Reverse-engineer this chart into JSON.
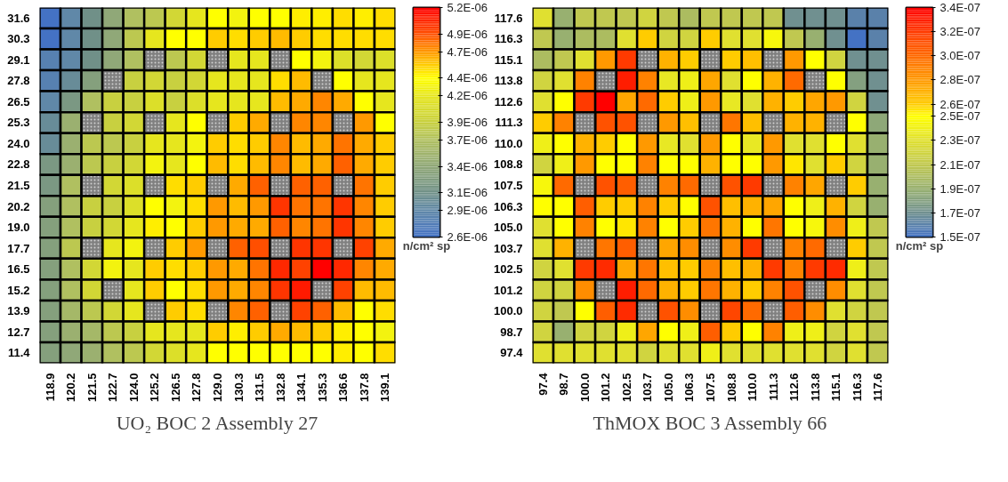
{
  "chart_data": [
    {
      "type": "heatmap",
      "title": "UO₂ BOC 2 Assembly 27",
      "clabel": "n/cm² sp",
      "categories": [
        "118.9",
        "120.2",
        "121.5",
        "122.7",
        "124.0",
        "125.2",
        "126.5",
        "127.8",
        "129.0",
        "130.3",
        "131.5",
        "132.8",
        "134.1",
        "135.3",
        "136.6",
        "137.8",
        "139.1"
      ],
      "y_categories": [
        "31.6",
        "30.3",
        "29.1",
        "27.8",
        "26.5",
        "25.3",
        "24.0",
        "22.8",
        "21.5",
        "20.2",
        "19.0",
        "17.7",
        "16.5",
        "15.2",
        "13.9",
        "12.7",
        "11.4"
      ],
      "clim": [
        2.6e-06,
        5.2e-06
      ],
      "cticks": [
        {
          "value": 5.2e-06,
          "label": "5.2E-06"
        },
        {
          "value": 4.9e-06,
          "label": "4.9E-06"
        },
        {
          "value": 4.7e-06,
          "label": "4.7E-06"
        },
        {
          "value": 4.4e-06,
          "label": "4.4E-06"
        },
        {
          "value": 4.2e-06,
          "label": "4.2E-06"
        },
        {
          "value": 3.9e-06,
          "label": "3.9E-06"
        },
        {
          "value": 3.7e-06,
          "label": "3.7E-06"
        },
        {
          "value": 3.4e-06,
          "label": "3.4E-06"
        },
        {
          "value": 3.1e-06,
          "label": "3.1E-06"
        },
        {
          "value": 2.9e-06,
          "label": "2.9E-06"
        },
        {
          "value": 2.6e-06,
          "label": "2.6E-06"
        }
      ],
      "colors": [
        "#ff0000",
        "#ff4f00",
        "#ff9900",
        "#ffff00",
        "#e6e61e",
        "#c8d040",
        "#b0c060",
        "#90a878",
        "#709088",
        "#6088a8",
        "#4472c4"
      ],
      "cells": [
        [
          2.6e-06,
          2.9e-06,
          3.1e-06,
          3.4e-06,
          3.7e-06,
          3.8e-06,
          4e-06,
          4.2e-06,
          4.4e-06,
          4.3e-06,
          4.4e-06,
          4.4e-06,
          4.45e-06,
          4.45e-06,
          4.5e-06,
          4.45e-06,
          4.5e-06
        ],
        [
          2.6e-06,
          2.9e-06,
          3.1e-06,
          3.4e-06,
          3.8e-06,
          4.2e-06,
          4.4e-06,
          4.4e-06,
          4.55e-06,
          4.5e-06,
          4.55e-06,
          4.6e-06,
          4.55e-06,
          4.5e-06,
          4.5e-06,
          4.5e-06,
          4.5e-06
        ],
        [
          2.8e-06,
          2.9e-06,
          3.1e-06,
          3.4e-06,
          3.7e-06,
          null,
          3.8e-06,
          4e-06,
          null,
          4.2e-06,
          4.2e-06,
          null,
          4.4e-06,
          4.3e-06,
          4.1e-06,
          4e-06,
          4.1e-06
        ],
        [
          2.8e-06,
          3e-06,
          3.3e-06,
          null,
          3.9e-06,
          4e-06,
          3.9e-06,
          4e-06,
          4.2e-06,
          4.2e-06,
          4.2e-06,
          4.5e-06,
          4.6e-06,
          null,
          4.4e-06,
          4.2e-06,
          4.2e-06
        ],
        [
          2.9e-06,
          3.2e-06,
          3.7e-06,
          3.9e-06,
          3.9e-06,
          4.1e-06,
          3.9e-06,
          4.1e-06,
          4.2e-06,
          4.2e-06,
          4.2e-06,
          4.6e-06,
          4.65e-06,
          4.75e-06,
          4.65e-06,
          4.4e-06,
          4.2e-06
        ],
        [
          3e-06,
          3.5e-06,
          null,
          3.9e-06,
          4e-06,
          null,
          4.2e-06,
          4.4e-06,
          null,
          4.55e-06,
          4.65e-06,
          null,
          4.75e-06,
          4.75e-06,
          null,
          4.7e-06,
          4.4e-06
        ],
        [
          3e-06,
          3.5e-06,
          3.8e-06,
          3.8e-06,
          3.9e-06,
          4.2e-06,
          4.2e-06,
          4.3e-06,
          4.55e-06,
          4.5e-06,
          4.55e-06,
          4.75e-06,
          4.6e-06,
          4.65e-06,
          4.8e-06,
          4.65e-06,
          4.55e-06
        ],
        [
          3.2e-06,
          3.5e-06,
          3.8e-06,
          3.9e-06,
          4e-06,
          4.3e-06,
          4.2e-06,
          4.4e-06,
          4.6e-06,
          4.5e-06,
          4.6e-06,
          4.75e-06,
          4.6e-06,
          4.65e-06,
          4.85e-06,
          4.65e-06,
          4.55e-06
        ],
        [
          3.2e-06,
          3.7e-06,
          null,
          4e-06,
          4.1e-06,
          null,
          4.5e-06,
          4.55e-06,
          null,
          4.65e-06,
          4.85e-06,
          null,
          4.85e-06,
          4.85e-06,
          null,
          4.8e-06,
          4.55e-06
        ],
        [
          3.3e-06,
          3.7e-06,
          3.9e-06,
          3.9e-06,
          4.1e-06,
          4.4e-06,
          4.3e-06,
          4.5e-06,
          4.7e-06,
          4.6e-06,
          4.7e-06,
          5e-06,
          4.8e-06,
          4.8e-06,
          5e-06,
          4.75e-06,
          4.55e-06
        ],
        [
          3.3e-06,
          3.7e-06,
          3.9e-06,
          4e-06,
          4.2e-06,
          4.45e-06,
          4.4e-06,
          4.55e-06,
          4.7e-06,
          4.65e-06,
          4.65e-06,
          4.85e-06,
          4.75e-06,
          4.8e-06,
          5e-06,
          4.75e-06,
          4.55e-06
        ],
        [
          3.3e-06,
          3.8e-06,
          null,
          4.2e-06,
          4.3e-06,
          null,
          4.55e-06,
          4.7e-06,
          null,
          4.85e-06,
          4.9e-06,
          null,
          5e-06,
          5e-06,
          null,
          4.95e-06,
          4.65e-06
        ],
        [
          3.3e-06,
          3.7e-06,
          4e-06,
          4.3e-06,
          4.2e-06,
          4.55e-06,
          4.5e-06,
          4.55e-06,
          4.7e-06,
          4.65e-06,
          4.8e-06,
          5.05e-06,
          4.95e-06,
          5.2e-06,
          5.05e-06,
          4.75e-06,
          4.65e-06
        ],
        [
          3.3e-06,
          3.7e-06,
          4e-06,
          null,
          4.2e-06,
          4.55e-06,
          4.4e-06,
          4.5e-06,
          4.7e-06,
          4.65e-06,
          4.75e-06,
          5e-06,
          5.1e-06,
          null,
          4.95e-06,
          4.6e-06,
          4.6e-06
        ],
        [
          3.3e-06,
          3.6e-06,
          3.8e-06,
          4e-06,
          4.2e-06,
          null,
          4.55e-06,
          4.5e-06,
          null,
          4.75e-06,
          4.85e-06,
          null,
          4.95e-06,
          4.85e-06,
          4.6e-06,
          4.4e-06,
          4.5e-06
        ],
        [
          3.3e-06,
          3.5e-06,
          3.6e-06,
          3.8e-06,
          3.9e-06,
          4.2e-06,
          4.2e-06,
          4.2e-06,
          4.55e-06,
          4.45e-06,
          4.55e-06,
          4.65e-06,
          4.6e-06,
          4.55e-06,
          4.45e-06,
          4.4e-06,
          4.3e-06
        ],
        [
          3.3e-06,
          3.4e-06,
          3.5e-06,
          3.7e-06,
          3.8e-06,
          4e-06,
          4.1e-06,
          4.2e-06,
          4.4e-06,
          4.4e-06,
          4.4e-06,
          4.4e-06,
          4.4e-06,
          4.4e-06,
          4.45e-06,
          4.4e-06,
          4.5e-06
        ]
      ]
    },
    {
      "type": "heatmap",
      "title": "ThMOX BOC 3 Assembly 66",
      "clabel": "n/cm² sp",
      "categories": [
        "97.4",
        "98.7",
        "100.0",
        "101.2",
        "102.5",
        "103.7",
        "105.0",
        "106.3",
        "107.5",
        "108.8",
        "110.0",
        "111.3",
        "112.6",
        "113.8",
        "115.1",
        "116.3",
        "117.6"
      ],
      "y_categories": [
        "117.6",
        "116.3",
        "115.1",
        "113.8",
        "112.6",
        "111.3",
        "110.0",
        "108.8",
        "107.5",
        "106.3",
        "105.0",
        "103.7",
        "102.5",
        "101.2",
        "100.0",
        "98.7",
        "97.4"
      ],
      "clim": [
        1.5e-07,
        3.4e-07
      ],
      "cticks": [
        {
          "value": 3.4e-07,
          "label": "3.4E-07"
        },
        {
          "value": 3.2e-07,
          "label": "3.2E-07"
        },
        {
          "value": 3e-07,
          "label": "3.0E-07"
        },
        {
          "value": 2.8e-07,
          "label": "2.8E-07"
        },
        {
          "value": 2.6e-07,
          "label": "2.6E-07"
        },
        {
          "value": 2.5e-07,
          "label": "2.5E-07"
        },
        {
          "value": 2.3e-07,
          "label": "2.3E-07"
        },
        {
          "value": 2.1e-07,
          "label": "2.1E-07"
        },
        {
          "value": 1.9e-07,
          "label": "1.9E-07"
        },
        {
          "value": 1.7e-07,
          "label": "1.7E-07"
        },
        {
          "value": 1.5e-07,
          "label": "1.5E-07"
        }
      ],
      "colors": [
        "#ff0000",
        "#ff3a00",
        "#ff6a00",
        "#ff9900",
        "#ffcc00",
        "#ffff00",
        "#e0e030",
        "#c0c850",
        "#98b070",
        "#709090",
        "#4472c4"
      ],
      "cells": [
        [
          2.3e-07,
          1.9e-07,
          2.1e-07,
          2.1e-07,
          2.1e-07,
          2.2e-07,
          2.1e-07,
          2e-07,
          2.1e-07,
          2.1e-07,
          2.1e-07,
          2.1e-07,
          1.7e-07,
          1.7e-07,
          1.7e-07,
          1.6e-07,
          1.6e-07
        ],
        [
          2.1e-07,
          1.9e-07,
          2e-07,
          2e-07,
          2.3e-07,
          2.6e-07,
          2.2e-07,
          2.2e-07,
          2.6e-07,
          2.3e-07,
          2.3e-07,
          2.45e-07,
          2.1e-07,
          1.9e-07,
          1.7e-07,
          1.5e-07,
          1.6e-07
        ],
        [
          2e-07,
          2.1e-07,
          2.3e-07,
          2.8e-07,
          3.2e-07,
          null,
          2.7e-07,
          2.6e-07,
          null,
          2.6e-07,
          2.65e-07,
          null,
          2.8e-07,
          2.5e-07,
          2.2e-07,
          1.7e-07,
          1.7e-07
        ],
        [
          2.2e-07,
          2.3e-07,
          2.9e-07,
          null,
          3.3e-07,
          2.9e-07,
          2.35e-07,
          2.4e-07,
          2.75e-07,
          2.3e-07,
          2.5e-07,
          2.7e-07,
          3e-07,
          null,
          2.5e-07,
          1.8e-07,
          1.7e-07
        ],
        [
          2.3e-07,
          2.5e-07,
          3.2e-07,
          3.4e-07,
          2.75e-07,
          3e-07,
          2.6e-07,
          2.4e-07,
          2.8e-07,
          2.35e-07,
          2.3e-07,
          2.7e-07,
          2.6e-07,
          2.75e-07,
          2.8e-07,
          2.2e-07,
          1.7e-07
        ],
        [
          2.6e-07,
          2.9e-07,
          null,
          3.1e-07,
          3.1e-07,
          null,
          2.8e-07,
          2.65e-07,
          null,
          2.95e-07,
          2.65e-07,
          null,
          2.7e-07,
          2.7e-07,
          null,
          2.5e-07,
          1.85e-07
        ],
        [
          2.4e-07,
          2.5e-07,
          2.7e-07,
          2.6e-07,
          2.5e-07,
          2.8e-07,
          2.35e-07,
          2.3e-07,
          2.8e-07,
          2.5e-07,
          2.35e-07,
          2.8e-07,
          2.3e-07,
          2.3e-07,
          2.5e-07,
          2.3e-07,
          1.9e-07
        ],
        [
          2.2e-07,
          2.4e-07,
          2.8e-07,
          2.5e-07,
          2.5e-07,
          2.9e-07,
          2.5e-07,
          2.5e-07,
          2.7e-07,
          2.5e-07,
          2.5e-07,
          2.8e-07,
          2.55e-07,
          2.3e-07,
          2.6e-07,
          2.2e-07,
          1.9e-07
        ],
        [
          2.45e-07,
          3e-07,
          null,
          3.1e-07,
          3.05e-07,
          null,
          2.9e-07,
          3e-07,
          null,
          3.1e-07,
          3.2e-07,
          null,
          2.9e-07,
          2.75e-07,
          null,
          2.6e-07,
          1.9e-07
        ],
        [
          2.5e-07,
          2.5e-07,
          3.05e-07,
          2.6e-07,
          2.6e-07,
          2.9e-07,
          2.6e-07,
          2.5e-07,
          3.1e-07,
          2.65e-07,
          2.7e-07,
          2.75e-07,
          2.5e-07,
          2.4e-07,
          2.7e-07,
          2.2e-07,
          1.9e-07
        ],
        [
          2.3e-07,
          2.5e-07,
          2.9e-07,
          2.5e-07,
          2.55e-07,
          2.9e-07,
          2.5e-07,
          2.6e-07,
          2.95e-07,
          2.7e-07,
          2.5e-07,
          2.95e-07,
          2.5e-07,
          2.45e-07,
          2.85e-07,
          2.4e-07,
          2.1e-07
        ],
        [
          2.3e-07,
          2.7e-07,
          null,
          2.95e-07,
          3.05e-07,
          null,
          2.75e-07,
          2.85e-07,
          null,
          2.85e-07,
          3.2e-07,
          null,
          2.9e-07,
          3e-07,
          null,
          2.6e-07,
          2.1e-07
        ],
        [
          2.2e-07,
          2.3e-07,
          3.2e-07,
          3.25e-07,
          2.75e-07,
          2.95e-07,
          2.65e-07,
          2.6e-07,
          2.9e-07,
          2.65e-07,
          2.7e-07,
          3.2e-07,
          2.9e-07,
          3.2e-07,
          3.25e-07,
          2.4e-07,
          2.1e-07
        ],
        [
          2.2e-07,
          2.2e-07,
          2.85e-07,
          null,
          3.3e-07,
          3e-07,
          2.7e-07,
          2.6e-07,
          2.95e-07,
          2.7e-07,
          2.6e-07,
          2.9e-07,
          3.1e-07,
          null,
          2.85e-07,
          2.3e-07,
          2.1e-07
        ],
        [
          2.2e-07,
          2.1e-07,
          2.5e-07,
          3.05e-07,
          3.25e-07,
          null,
          3.1e-07,
          2.85e-07,
          null,
          3.15e-07,
          3e-07,
          null,
          3.05e-07,
          2.85e-07,
          2.3e-07,
          2.2e-07,
          2.1e-07
        ],
        [
          2.2e-07,
          1.9e-07,
          2.2e-07,
          2.2e-07,
          2.4e-07,
          2.75e-07,
          2.5e-07,
          2.4e-07,
          3.05e-07,
          2.6e-07,
          2.5e-07,
          2.9e-07,
          2.4e-07,
          2.4e-07,
          2.2e-07,
          2.3e-07,
          2.1e-07
        ],
        [
          2.3e-07,
          2.3e-07,
          2.3e-07,
          2.3e-07,
          2.3e-07,
          2.2e-07,
          2.3e-07,
          2.3e-07,
          2.4e-07,
          2.3e-07,
          2.3e-07,
          2.3e-07,
          2.3e-07,
          2.3e-07,
          2.2e-07,
          2.3e-07,
          2.1e-07
        ]
      ]
    }
  ]
}
